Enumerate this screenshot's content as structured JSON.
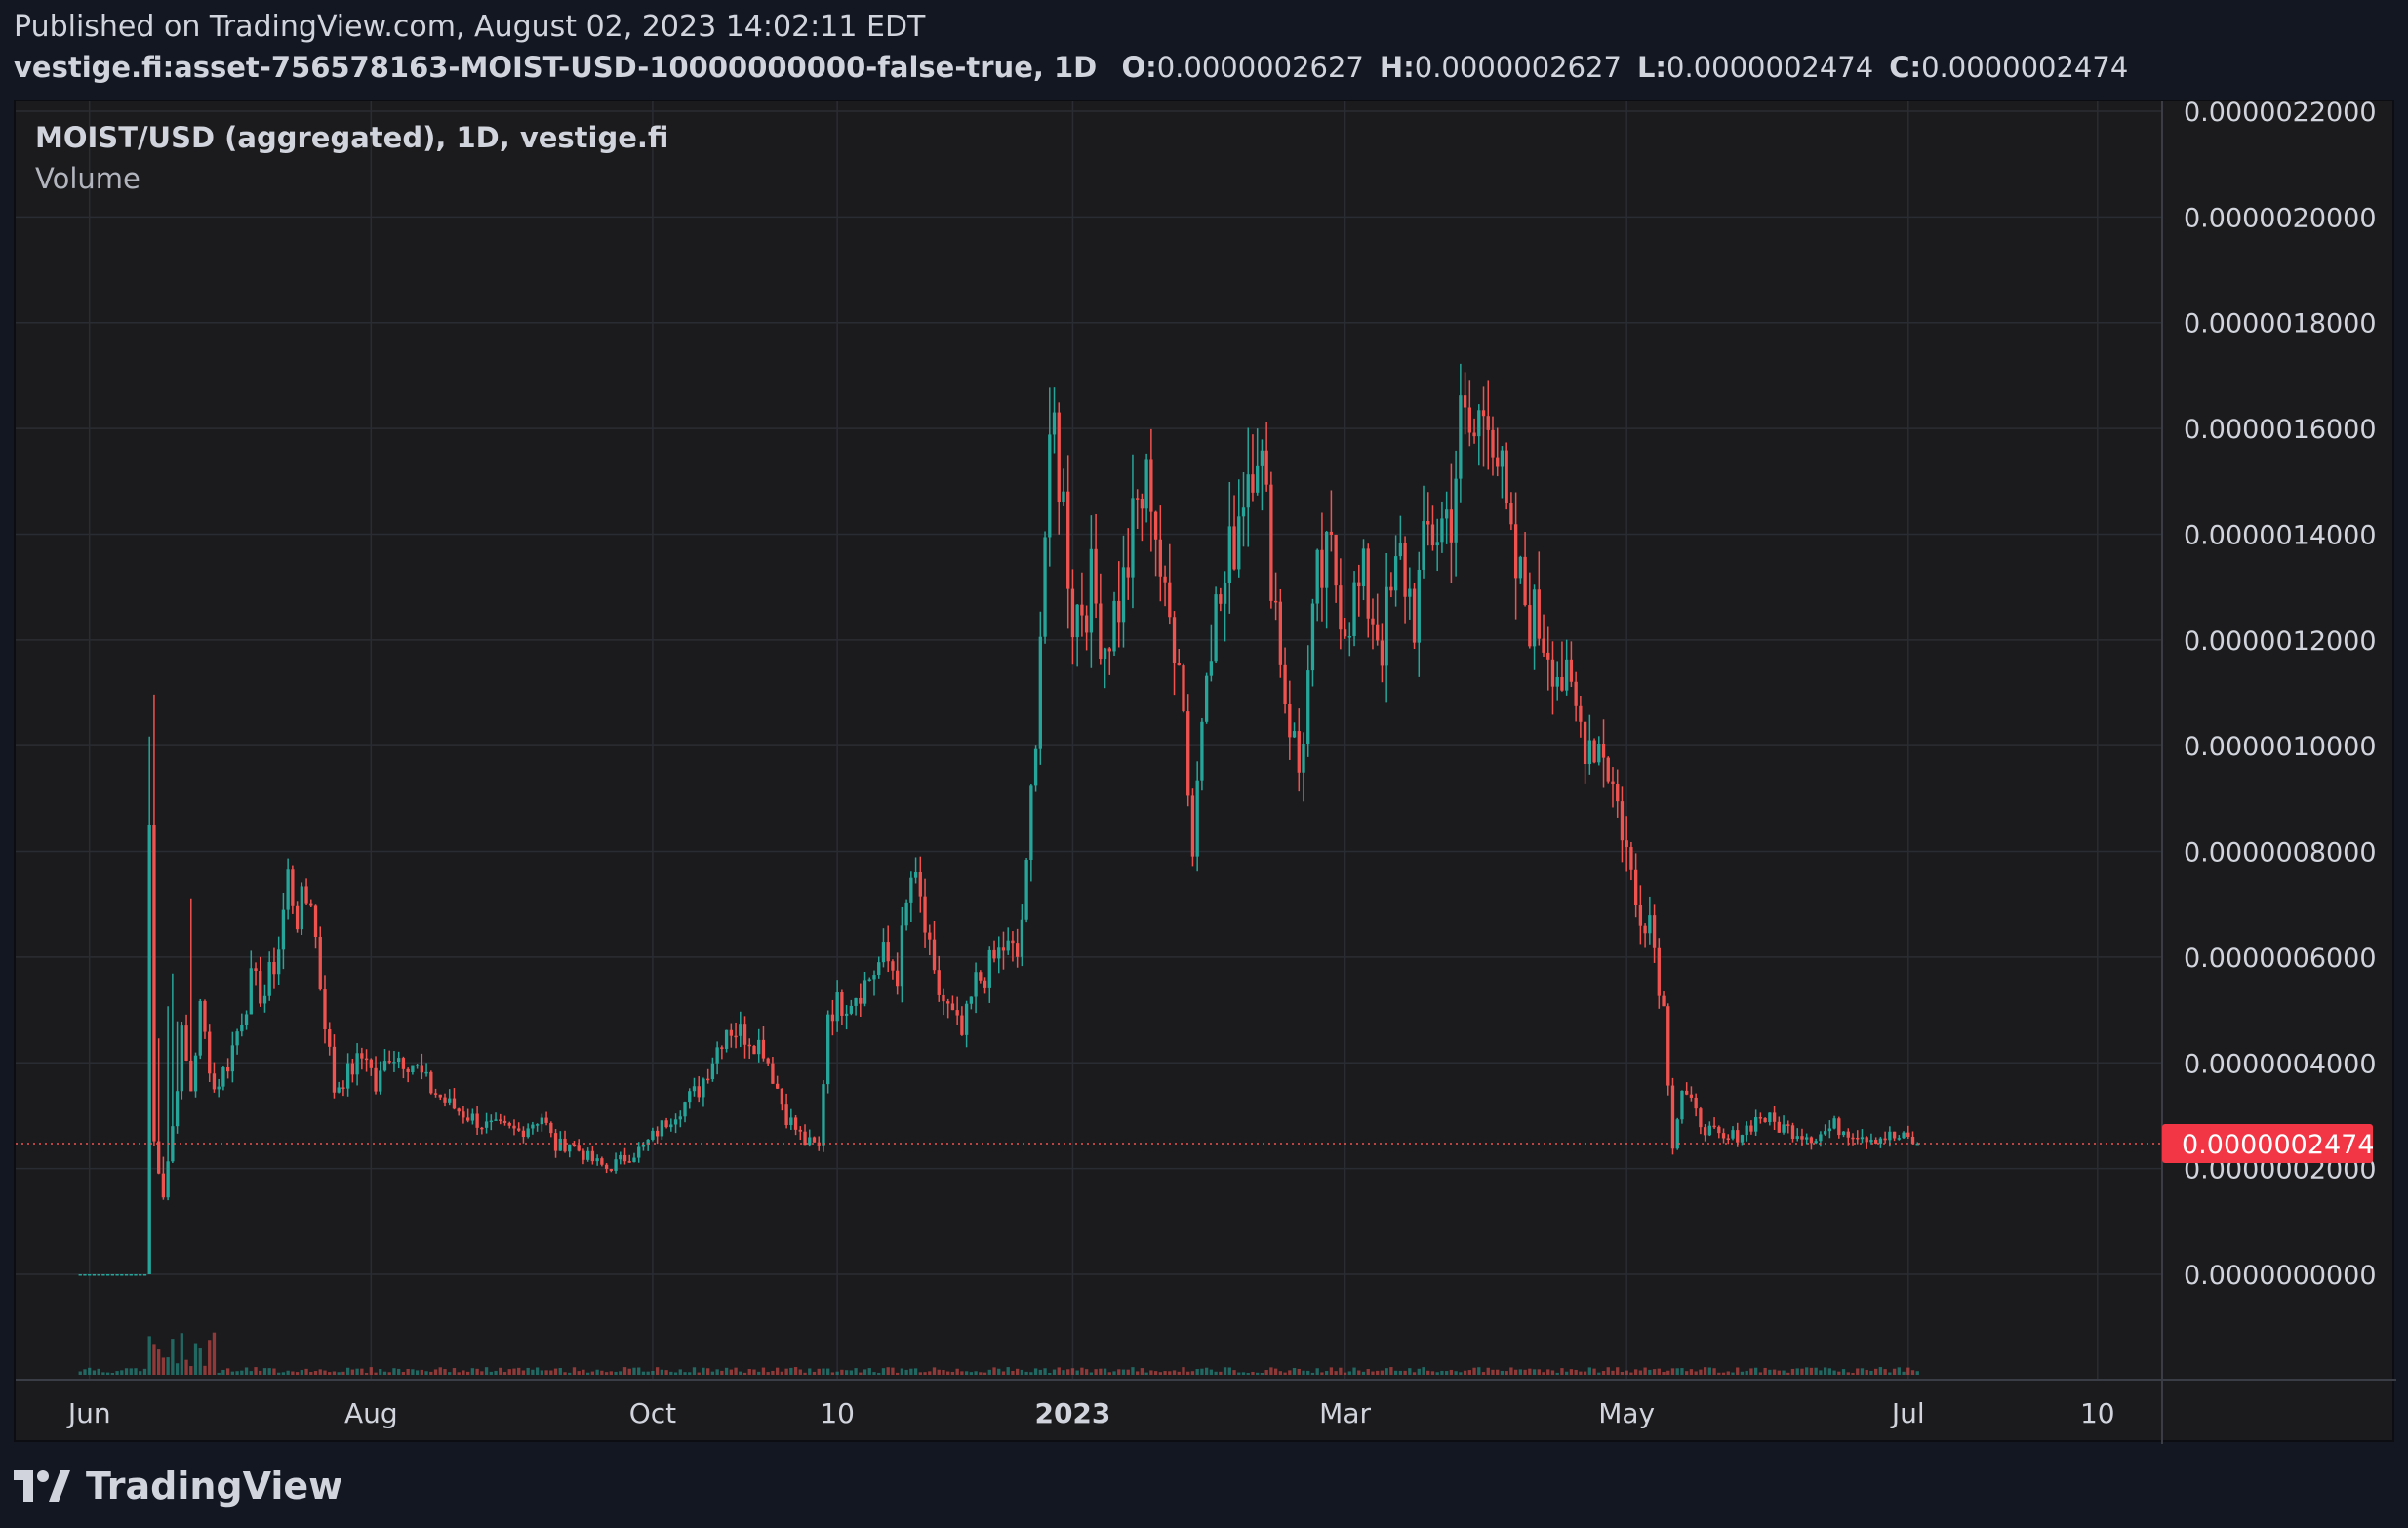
{
  "header": {
    "published": "Published on TradingView.com, August 02, 2023 14:02:11 EDT",
    "symbol_line": "vestige.fi:asset-756578163-MOIST-USD-10000000000-false-true, 1D",
    "ohlc": [
      {
        "key": "O:",
        "value": "0.0000002627"
      },
      {
        "key": "H:",
        "value": "0.0000002627"
      },
      {
        "key": "L:",
        "value": "0.0000002474"
      },
      {
        "key": "C:",
        "value": "0.0000002474"
      }
    ]
  },
  "legend": {
    "main": "MOIST/USD (aggregated), 1D, vestige.fi",
    "volume": "Volume"
  },
  "footer": {
    "brand": "TradingView"
  },
  "colors": {
    "up": "#26a69a",
    "down": "#ef5350",
    "grid": "#2a2c33",
    "axis_text": "#d1d4dc",
    "last_price_bg": "#f23645",
    "background": "#1b1b1d"
  },
  "chart_data": {
    "type": "candlestick",
    "interval": "1D",
    "y_tick_labels": [
      "0.0000022000",
      "0.0000020000",
      "0.0000018000",
      "0.0000016000",
      "0.0000014000",
      "0.0000012000",
      "0.0000010000",
      "0.0000008000",
      "0.0000006000",
      "0.0000004000",
      "0.0000002000",
      "0.0000000000"
    ],
    "y_ticks": [
      2.2,
      2.0,
      1.8,
      1.6,
      1.4,
      1.2,
      1.0,
      0.8,
      0.6,
      0.4,
      0.2,
      0.0
    ],
    "y_unit_scale": 1e-06,
    "ylim": [
      -0.2,
      2.2
    ],
    "x_tick_labels": [
      "Jun",
      "Aug",
      "Oct",
      "10",
      "2023",
      "Mar",
      "May",
      "Jul",
      "10"
    ],
    "x_tick_days": [
      2,
      63,
      124,
      164,
      215,
      274,
      335,
      396,
      437
    ],
    "x_tick_bold": [
      false,
      false,
      false,
      false,
      true,
      false,
      false,
      false,
      false
    ],
    "x_range_days": [
      -14,
      451
    ],
    "last_price": {
      "label": "0.0000002474",
      "value": 0.2474
    },
    "series_anchors": {
      "note": "closing price trajectory, day index from Jun 1 2022, price in units of 1e-6 USD",
      "points": [
        [
          0,
          0.0
        ],
        [
          14,
          0.0
        ],
        [
          15,
          0.85
        ],
        [
          16,
          0.25
        ],
        [
          18,
          0.15
        ],
        [
          20,
          0.28
        ],
        [
          22,
          0.45
        ],
        [
          24,
          0.35
        ],
        [
          26,
          0.5
        ],
        [
          29,
          0.35
        ],
        [
          32,
          0.4
        ],
        [
          37,
          0.55
        ],
        [
          40,
          0.53
        ],
        [
          43,
          0.62
        ],
        [
          45,
          0.75
        ],
        [
          47,
          0.68
        ],
        [
          50,
          0.72
        ],
        [
          52,
          0.55
        ],
        [
          55,
          0.35
        ],
        [
          58,
          0.38
        ],
        [
          62,
          0.42
        ],
        [
          64,
          0.35
        ],
        [
          67,
          0.42
        ],
        [
          72,
          0.4
        ],
        [
          76,
          0.35
        ],
        [
          80,
          0.32
        ],
        [
          88,
          0.28
        ],
        [
          95,
          0.27
        ],
        [
          100,
          0.3
        ],
        [
          103,
          0.24
        ],
        [
          106,
          0.25
        ],
        [
          110,
          0.22
        ],
        [
          114,
          0.2
        ],
        [
          118,
          0.22
        ],
        [
          122,
          0.24
        ],
        [
          128,
          0.3
        ],
        [
          134,
          0.35
        ],
        [
          140,
          0.47
        ],
        [
          145,
          0.45
        ],
        [
          148,
          0.43
        ],
        [
          153,
          0.3
        ],
        [
          157,
          0.25
        ],
        [
          160,
          0.24
        ],
        [
          162,
          0.5
        ],
        [
          166,
          0.52
        ],
        [
          170,
          0.55
        ],
        [
          174,
          0.6
        ],
        [
          177,
          0.57
        ],
        [
          180,
          0.75
        ],
        [
          182,
          0.7
        ],
        [
          185,
          0.55
        ],
        [
          188,
          0.5
        ],
        [
          191,
          0.45
        ],
        [
          194,
          0.55
        ],
        [
          197,
          0.58
        ],
        [
          200,
          0.62
        ],
        [
          203,
          0.6
        ],
        [
          205,
          0.75
        ],
        [
          207,
          1.05
        ],
        [
          209,
          1.4
        ],
        [
          211,
          1.6
        ],
        [
          213,
          1.45
        ],
        [
          215,
          1.25
        ],
        [
          219,
          1.3
        ],
        [
          222,
          1.2
        ],
        [
          226,
          1.3
        ],
        [
          229,
          1.45
        ],
        [
          232,
          1.5
        ],
        [
          235,
          1.25
        ],
        [
          238,
          1.2
        ],
        [
          241,
          0.8
        ],
        [
          244,
          1.2
        ],
        [
          248,
          1.3
        ],
        [
          252,
          1.5
        ],
        [
          255,
          1.6
        ],
        [
          258,
          1.35
        ],
        [
          261,
          1.1
        ],
        [
          264,
          0.95
        ],
        [
          268,
          1.3
        ],
        [
          271,
          1.35
        ],
        [
          274,
          1.25
        ],
        [
          278,
          1.3
        ],
        [
          282,
          1.2
        ],
        [
          286,
          1.35
        ],
        [
          289,
          1.25
        ],
        [
          292,
          1.4
        ],
        [
          295,
          1.42
        ],
        [
          297,
          1.45
        ],
        [
          299,
          1.6
        ],
        [
          302,
          1.58
        ],
        [
          305,
          1.68
        ],
        [
          307,
          1.55
        ],
        [
          310,
          1.35
        ],
        [
          314,
          1.25
        ],
        [
          318,
          1.2
        ],
        [
          322,
          1.1
        ],
        [
          326,
          1.02
        ],
        [
          330,
          1.0
        ],
        [
          334,
          0.85
        ],
        [
          337,
          0.7
        ],
        [
          340,
          0.68
        ],
        [
          343,
          0.5
        ],
        [
          345,
          0.25
        ],
        [
          347,
          0.35
        ],
        [
          350,
          0.3
        ],
        [
          353,
          0.27
        ],
        [
          356,
          0.25
        ],
        [
          360,
          0.27
        ],
        [
          364,
          0.3
        ],
        [
          368,
          0.28
        ],
        [
          372,
          0.27
        ],
        [
          376,
          0.26
        ],
        [
          380,
          0.28
        ],
        [
          384,
          0.27
        ],
        [
          388,
          0.26
        ],
        [
          392,
          0.26
        ],
        [
          396,
          0.255
        ],
        [
          398,
          0.2474
        ]
      ]
    }
  }
}
